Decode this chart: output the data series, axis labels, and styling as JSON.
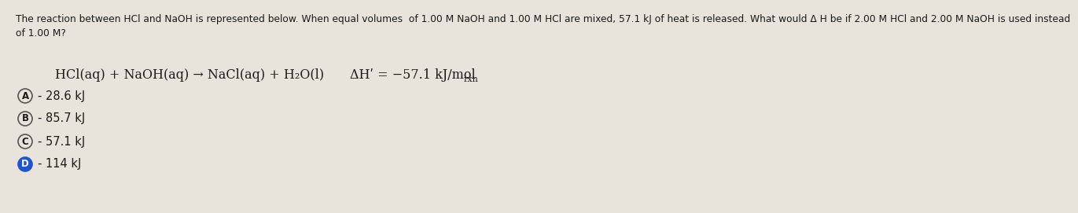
{
  "background_color": "#e8e4dc",
  "text_color": "#1a1a1a",
  "question_text": "The reaction between HCl and NaOH is represented below. When equal volumes  of 1.00 M NaOH and 1.00 M HCl are mixed, 57.1 kJ of heat is released. What would Δ H be if 2.00 M HCl and 2.00 M NaOH is used instead\nof 1.00 M?",
  "reaction_equation": "HCl(aq) + NaOH(aq) → NaCl(aq) + H₂O(l)",
  "delta_H_main": "ΔHʹ = −57.1 kJ/mol",
  "delta_H_sub": "rxn",
  "choices": [
    {
      "label": "A",
      "text": "- 28.6 kJ",
      "highlighted": false
    },
    {
      "label": "B",
      "text": "- 85.7 kJ",
      "highlighted": false
    },
    {
      "label": "C",
      "text": "- 57.1 kJ",
      "highlighted": false
    },
    {
      "label": "D",
      "text": "- 114 kJ",
      "highlighted": true
    }
  ],
  "circle_outline_color": "#555555",
  "circle_fill_color": "#2255cc",
  "font_size_question": 8.8,
  "font_size_reaction": 11.5,
  "font_size_choices": 10.5,
  "font_size_circle_label": 8.5
}
